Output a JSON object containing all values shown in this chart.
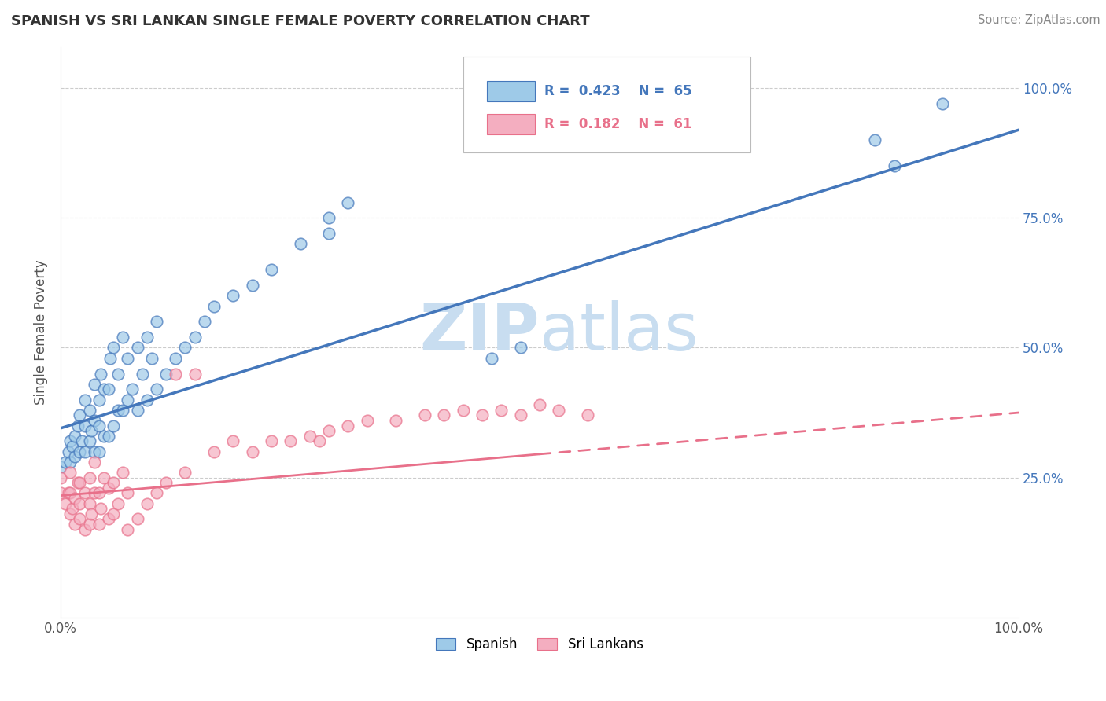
{
  "title": "SPANISH VS SRI LANKAN SINGLE FEMALE POVERTY CORRELATION CHART",
  "source": "Source: ZipAtlas.com",
  "ylabel": "Single Female Poverty",
  "xlim": [
    0,
    1
  ],
  "ylim": [
    -0.02,
    1.08
  ],
  "legend_r1": "R = 0.423",
  "legend_n1": "N = 65",
  "legend_r2": "R = 0.182",
  "legend_n2": "N = 61",
  "spanish_color": "#9ecae8",
  "srilanka_color": "#f4aec0",
  "spanish_line_color": "#4477bb",
  "srilanka_line_color": "#e8708a",
  "watermark_color": "#c8ddf0",
  "background_color": "#ffffff",
  "spanish_x": [
    0.0,
    0.005,
    0.008,
    0.01,
    0.01,
    0.012,
    0.015,
    0.015,
    0.018,
    0.02,
    0.02,
    0.022,
    0.025,
    0.025,
    0.025,
    0.03,
    0.03,
    0.032,
    0.035,
    0.035,
    0.035,
    0.04,
    0.04,
    0.04,
    0.042,
    0.045,
    0.045,
    0.05,
    0.05,
    0.052,
    0.055,
    0.055,
    0.06,
    0.06,
    0.065,
    0.065,
    0.07,
    0.07,
    0.075,
    0.08,
    0.08,
    0.085,
    0.09,
    0.09,
    0.095,
    0.1,
    0.1,
    0.11,
    0.12,
    0.13,
    0.14,
    0.15,
    0.16,
    0.18,
    0.2,
    0.22,
    0.25,
    0.28,
    0.28,
    0.3,
    0.45,
    0.48,
    0.85,
    0.87,
    0.92
  ],
  "spanish_y": [
    0.27,
    0.28,
    0.3,
    0.32,
    0.28,
    0.31,
    0.29,
    0.33,
    0.35,
    0.3,
    0.37,
    0.32,
    0.3,
    0.35,
    0.4,
    0.32,
    0.38,
    0.34,
    0.3,
    0.36,
    0.43,
    0.3,
    0.35,
    0.4,
    0.45,
    0.33,
    0.42,
    0.33,
    0.42,
    0.48,
    0.35,
    0.5,
    0.38,
    0.45,
    0.38,
    0.52,
    0.4,
    0.48,
    0.42,
    0.38,
    0.5,
    0.45,
    0.4,
    0.52,
    0.48,
    0.42,
    0.55,
    0.45,
    0.48,
    0.5,
    0.52,
    0.55,
    0.58,
    0.6,
    0.62,
    0.65,
    0.7,
    0.72,
    0.75,
    0.78,
    0.48,
    0.5,
    0.9,
    0.85,
    0.97
  ],
  "srilanka_x": [
    0.0,
    0.0,
    0.005,
    0.008,
    0.01,
    0.01,
    0.01,
    0.012,
    0.015,
    0.015,
    0.018,
    0.02,
    0.02,
    0.02,
    0.025,
    0.025,
    0.03,
    0.03,
    0.03,
    0.032,
    0.035,
    0.035,
    0.04,
    0.04,
    0.042,
    0.045,
    0.05,
    0.05,
    0.055,
    0.055,
    0.06,
    0.065,
    0.07,
    0.07,
    0.08,
    0.09,
    0.1,
    0.11,
    0.12,
    0.13,
    0.14,
    0.16,
    0.18,
    0.2,
    0.22,
    0.24,
    0.26,
    0.27,
    0.28,
    0.3,
    0.32,
    0.35,
    0.38,
    0.4,
    0.42,
    0.44,
    0.46,
    0.48,
    0.5,
    0.52,
    0.55
  ],
  "srilanka_y": [
    0.22,
    0.25,
    0.2,
    0.22,
    0.18,
    0.22,
    0.26,
    0.19,
    0.16,
    0.21,
    0.24,
    0.17,
    0.2,
    0.24,
    0.15,
    0.22,
    0.16,
    0.2,
    0.25,
    0.18,
    0.22,
    0.28,
    0.16,
    0.22,
    0.19,
    0.25,
    0.17,
    0.23,
    0.18,
    0.24,
    0.2,
    0.26,
    0.15,
    0.22,
    0.17,
    0.2,
    0.22,
    0.24,
    0.45,
    0.26,
    0.45,
    0.3,
    0.32,
    0.3,
    0.32,
    0.32,
    0.33,
    0.32,
    0.34,
    0.35,
    0.36,
    0.36,
    0.37,
    0.37,
    0.38,
    0.37,
    0.38,
    0.37,
    0.39,
    0.38,
    0.37
  ],
  "regression_blue_x0": 0.0,
  "regression_blue_y0": 0.345,
  "regression_blue_x1": 1.0,
  "regression_blue_y1": 0.92,
  "regression_pink_x0": 0.0,
  "regression_pink_y0": 0.215,
  "regression_pink_x1": 1.0,
  "regression_pink_y1": 0.375,
  "regression_pink_dash_x0": 0.5,
  "regression_pink_dash_x1": 1.0
}
